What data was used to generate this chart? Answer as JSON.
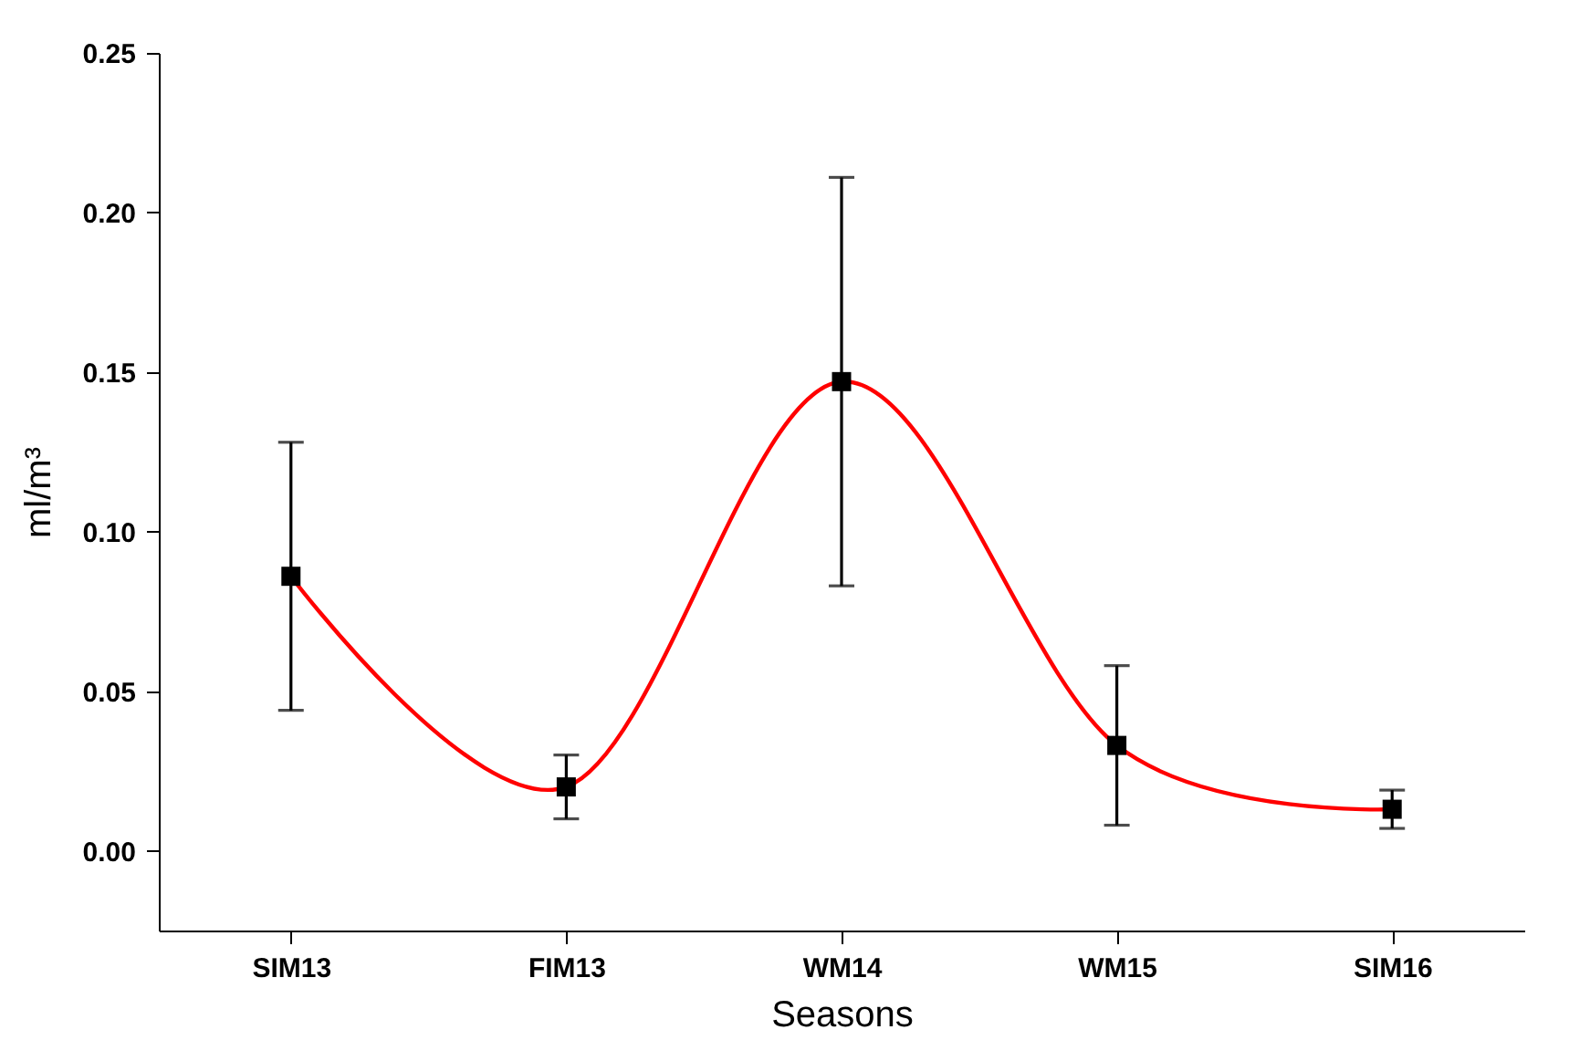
{
  "chart_data": {
    "type": "line",
    "xlabel": "Seasons",
    "ylabel": "ml/m³",
    "categories": [
      "SIM13",
      "FIM13",
      "WM14",
      "WM15",
      "SIM16"
    ],
    "series": [
      {
        "color": "#ff0000",
        "values": [
          0.086,
          0.02,
          0.147,
          0.033,
          0.013
        ],
        "errors": [
          0.042,
          0.01,
          0.064,
          0.025,
          0.006
        ]
      }
    ],
    "ylim": [
      -0.025,
      0.25
    ],
    "yticks": [
      {
        "value": 0,
        "label": "0.00"
      },
      0.05,
      {
        "value": 0.1,
        "label": "0.10"
      },
      0.15,
      {
        "value": 0.2,
        "label": "0.20"
      },
      0.25
    ],
    "marker": "square",
    "grid": false
  }
}
